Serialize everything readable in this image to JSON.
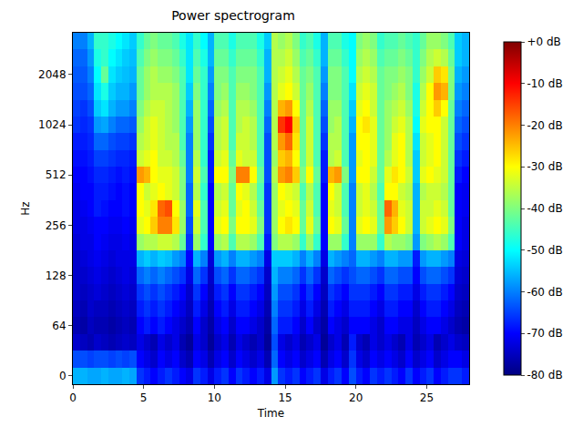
{
  "chart_data": {
    "type": "heatmap",
    "title": "Power spectrogram",
    "x_label": "Time",
    "y_label": "Hz",
    "color": "jet",
    "grid": false,
    "x": [
      0.25,
      0.75,
      1.25,
      1.75,
      2.25,
      2.75,
      3.25,
      3.75,
      4.25,
      4.75,
      5.25,
      5.75,
      6.25,
      6.75,
      7.25,
      7.75,
      8.25,
      8.75,
      9.25,
      9.75,
      10.25,
      10.75,
      11.25,
      11.75,
      12.25,
      12.75,
      13.25,
      13.75,
      14.25,
      14.75,
      15.25,
      15.75,
      16.25,
      16.75,
      17.25,
      17.75,
      18.25,
      18.75,
      19.25,
      19.75,
      20.25,
      20.75,
      21.25,
      21.75,
      22.25,
      22.75,
      23.25,
      23.75,
      24.25,
      24.75,
      25.25,
      25.75,
      26.25,
      26.75,
      27.25,
      27.75
    ],
    "xlim": [
      0,
      28
    ],
    "xticks": [
      0,
      5,
      10,
      15,
      20,
      25
    ],
    "y_categories": [
      0,
      null,
      null,
      64,
      null,
      null,
      128,
      null,
      null,
      256,
      null,
      null,
      512,
      null,
      null,
      1024,
      null,
      null,
      2048,
      null,
      null
    ],
    "cells": [
      [
        -56,
        -56,
        -57,
        -57,
        -56,
        -57,
        -57,
        -56,
        -57,
        -66,
        -68,
        -70,
        -68,
        -66,
        -68,
        -70,
        -72,
        -66,
        -68,
        -72,
        -68,
        -66,
        -70,
        -66,
        -68,
        -70,
        -68,
        -72,
        -58,
        -66,
        -68,
        -66,
        -70,
        -68,
        -66,
        -72,
        -68,
        -66,
        -70,
        -64,
        -68,
        -70,
        -66,
        -68,
        -66,
        -68,
        -70,
        -66,
        -70,
        -68,
        -66,
        -70,
        -68,
        -66,
        -66,
        -68
      ],
      [
        -64,
        -64,
        -65,
        -64,
        -64,
        -65,
        -64,
        -65,
        -64,
        -70,
        -72,
        -74,
        -70,
        -72,
        -70,
        -74,
        -76,
        -70,
        -72,
        -76,
        -72,
        -70,
        -74,
        -70,
        -72,
        -74,
        -72,
        -76,
        -62,
        -70,
        -72,
        -70,
        -74,
        -72,
        -70,
        -76,
        -72,
        -70,
        -74,
        -66,
        -72,
        -74,
        -70,
        -72,
        -70,
        -72,
        -74,
        -70,
        -74,
        -72,
        -70,
        -74,
        -72,
        -70,
        -70,
        -72
      ],
      [
        -74,
        -75,
        -76,
        -74,
        -75,
        -76,
        -75,
        -74,
        -75,
        -72,
        -74,
        -76,
        -72,
        -74,
        -72,
        -76,
        -78,
        -72,
        -74,
        -78,
        -74,
        -72,
        -76,
        -72,
        -74,
        -76,
        -74,
        -78,
        -64,
        -72,
        -74,
        -72,
        -76,
        -74,
        -72,
        -78,
        -74,
        -72,
        -76,
        -68,
        -74,
        -76,
        -72,
        -74,
        -72,
        -74,
        -76,
        -72,
        -76,
        -74,
        -72,
        -76,
        -74,
        -72,
        -74,
        -75
      ],
      [
        -76,
        -77,
        -75,
        -76,
        -76,
        -77,
        -76,
        -75,
        -76,
        -70,
        -68,
        -70,
        -68,
        -70,
        -72,
        -74,
        -76,
        -70,
        -74,
        -77,
        -72,
        -70,
        -74,
        -70,
        -70,
        -72,
        -74,
        -77,
        -62,
        -68,
        -68,
        -70,
        -74,
        -70,
        -74,
        -77,
        -70,
        -72,
        -74,
        -70,
        -70,
        -70,
        -72,
        -74,
        -70,
        -70,
        -72,
        -72,
        -75,
        -72,
        -70,
        -70,
        -72,
        -74,
        -76,
        -77
      ],
      [
        -75,
        -76,
        -74,
        -75,
        -75,
        -76,
        -75,
        -74,
        -75,
        -68,
        -66,
        -68,
        -66,
        -68,
        -70,
        -72,
        -75,
        -68,
        -72,
        -76,
        -70,
        -68,
        -72,
        -68,
        -68,
        -70,
        -72,
        -76,
        -60,
        -66,
        -66,
        -68,
        -72,
        -68,
        -72,
        -76,
        -68,
        -70,
        -72,
        -68,
        -68,
        -68,
        -70,
        -72,
        -68,
        -68,
        -70,
        -70,
        -74,
        -70,
        -68,
        -68,
        -70,
        -72,
        -75,
        -76
      ],
      [
        -74,
        -75,
        -74,
        -73,
        -74,
        -75,
        -74,
        -73,
        -74,
        -66,
        -64,
        -66,
        -64,
        -66,
        -68,
        -70,
        -74,
        -66,
        -70,
        -75,
        -68,
        -66,
        -70,
        -66,
        -66,
        -68,
        -70,
        -75,
        -58,
        -64,
        -64,
        -66,
        -70,
        -66,
        -70,
        -75,
        -66,
        -68,
        -70,
        -66,
        -66,
        -66,
        -68,
        -70,
        -66,
        -66,
        -68,
        -68,
        -72,
        -68,
        -66,
        -66,
        -68,
        -70,
        -74,
        -75
      ],
      [
        -74,
        -74,
        -73,
        -72,
        -73,
        -74,
        -73,
        -72,
        -73,
        -62,
        -60,
        -62,
        -60,
        -62,
        -64,
        -66,
        -72,
        -62,
        -66,
        -74,
        -64,
        -62,
        -66,
        -62,
        -62,
        -64,
        -66,
        -74,
        -56,
        -60,
        -60,
        -62,
        -66,
        -62,
        -66,
        -74,
        -62,
        -64,
        -66,
        -64,
        -62,
        -62,
        -64,
        -66,
        -62,
        -62,
        -64,
        -64,
        -70,
        -64,
        -62,
        -62,
        -64,
        -66,
        -73,
        -74
      ],
      [
        -74,
        -73,
        -72,
        -71,
        -72,
        -73,
        -72,
        -72,
        -72,
        -56,
        -54,
        -56,
        -54,
        -55,
        -58,
        -60,
        -70,
        -56,
        -60,
        -73,
        -58,
        -56,
        -60,
        -56,
        -56,
        -58,
        -60,
        -72,
        -54,
        -54,
        -54,
        -56,
        -60,
        -56,
        -60,
        -72,
        -56,
        -58,
        -60,
        -62,
        -56,
        -56,
        -58,
        -60,
        -56,
        -56,
        -58,
        -58,
        -68,
        -58,
        -56,
        -56,
        -58,
        -60,
        -72,
        -73
      ],
      [
        -73,
        -72,
        -72,
        -70,
        -71,
        -72,
        -72,
        -71,
        -72,
        -38,
        -36,
        -36,
        -34,
        -34,
        -36,
        -42,
        -66,
        -38,
        -46,
        -70,
        -38,
        -36,
        -44,
        -36,
        -36,
        -38,
        -44,
        -68,
        -40,
        -36,
        -36,
        -38,
        -46,
        -38,
        -46,
        -70,
        -38,
        -38,
        -46,
        -60,
        -38,
        -38,
        -38,
        -46,
        -36,
        -38,
        -38,
        -40,
        -58,
        -40,
        -38,
        -36,
        -38,
        -44,
        -70,
        -72
      ],
      [
        -72,
        -72,
        -71,
        -70,
        -70,
        -71,
        -71,
        -70,
        -71,
        -32,
        -30,
        -26,
        -20,
        -20,
        -28,
        -38,
        -64,
        -34,
        -44,
        -70,
        -32,
        -30,
        -40,
        -30,
        -30,
        -32,
        -40,
        -66,
        -38,
        -30,
        -28,
        -30,
        -42,
        -32,
        -42,
        -70,
        -30,
        -32,
        -42,
        -60,
        -32,
        -30,
        -32,
        -42,
        -22,
        -26,
        -30,
        -34,
        -56,
        -34,
        -32,
        -30,
        -32,
        -40,
        -70,
        -72
      ],
      [
        -72,
        -71,
        -70,
        -68,
        -69,
        -70,
        -70,
        -69,
        -70,
        -30,
        -32,
        -28,
        -18,
        -16,
        -30,
        -38,
        -62,
        -32,
        -44,
        -70,
        -34,
        -32,
        -42,
        -32,
        -30,
        -34,
        -42,
        -66,
        -38,
        -32,
        -30,
        -32,
        -42,
        -34,
        -44,
        -70,
        -32,
        -34,
        -44,
        -60,
        -34,
        -32,
        -34,
        -42,
        -18,
        -24,
        -32,
        -34,
        -56,
        -34,
        -34,
        -32,
        -34,
        -42,
        -70,
        -71
      ],
      [
        -71,
        -70,
        -70,
        -68,
        -68,
        -69,
        -70,
        -69,
        -70,
        -30,
        -34,
        -32,
        -30,
        -32,
        -34,
        -40,
        -62,
        -36,
        -46,
        -70,
        -36,
        -34,
        -42,
        -30,
        -32,
        -36,
        -44,
        -66,
        -38,
        -30,
        -32,
        -34,
        -44,
        -36,
        -44,
        -70,
        -30,
        -34,
        -44,
        -60,
        -34,
        -32,
        -36,
        -44,
        -30,
        -30,
        -34,
        -36,
        -56,
        -36,
        -34,
        -34,
        -36,
        -42,
        -70,
        -71
      ],
      [
        -70,
        -70,
        -69,
        -67,
        -67,
        -68,
        -69,
        -68,
        -69,
        -22,
        -24,
        -30,
        -32,
        -32,
        -34,
        -40,
        -60,
        -34,
        -44,
        -68,
        -30,
        -30,
        -40,
        -20,
        -20,
        -30,
        -42,
        -64,
        -36,
        -22,
        -20,
        -26,
        -40,
        -30,
        -42,
        -68,
        -24,
        -22,
        -40,
        -58,
        -30,
        -30,
        -34,
        -42,
        -32,
        -28,
        -30,
        -34,
        -54,
        -32,
        -30,
        -32,
        -34,
        -42,
        -68,
        -70
      ],
      [
        -69,
        -69,
        -68,
        -65,
        -65,
        -66,
        -67,
        -67,
        -68,
        -34,
        -32,
        -30,
        -34,
        -34,
        -36,
        -42,
        -60,
        -36,
        -46,
        -68,
        -34,
        -32,
        -42,
        -32,
        -34,
        -34,
        -44,
        -64,
        -38,
        -26,
        -24,
        -30,
        -42,
        -34,
        -44,
        -68,
        -36,
        -34,
        -44,
        -58,
        -32,
        -30,
        -32,
        -42,
        -36,
        -32,
        -30,
        -36,
        -54,
        -34,
        -32,
        -30,
        -34,
        -42,
        -66,
        -68
      ],
      [
        -68,
        -68,
        -67,
        -62,
        -62,
        -64,
        -65,
        -65,
        -66,
        -36,
        -34,
        -32,
        -34,
        -36,
        -36,
        -44,
        -60,
        -38,
        -46,
        -66,
        -36,
        -34,
        -44,
        -34,
        -34,
        -36,
        -44,
        -64,
        -36,
        -22,
        -18,
        -28,
        -42,
        -34,
        -44,
        -66,
        -36,
        -36,
        -44,
        -58,
        -30,
        -30,
        -32,
        -42,
        -38,
        -32,
        -30,
        -36,
        -52,
        -34,
        -32,
        -30,
        -34,
        -42,
        -64,
        -66
      ],
      [
        -66,
        -67,
        -66,
        -58,
        -57,
        -60,
        -62,
        -62,
        -63,
        -38,
        -34,
        -32,
        -34,
        -36,
        -38,
        -44,
        -58,
        -38,
        -46,
        -64,
        -36,
        -34,
        -44,
        -36,
        -34,
        -36,
        -44,
        -62,
        -36,
        -14,
        -10,
        -26,
        -42,
        -34,
        -44,
        -64,
        -38,
        -36,
        -44,
        -56,
        -30,
        -28,
        -32,
        -42,
        -38,
        -34,
        -32,
        -36,
        -50,
        -32,
        -30,
        -30,
        -34,
        -42,
        -62,
        -64
      ],
      [
        -65,
        -66,
        -64,
        -54,
        -52,
        -56,
        -58,
        -58,
        -60,
        -40,
        -36,
        -34,
        -34,
        -36,
        -38,
        -44,
        -56,
        -38,
        -46,
        -62,
        -38,
        -36,
        -44,
        -36,
        -36,
        -38,
        -44,
        -60,
        -36,
        -24,
        -22,
        -30,
        -42,
        -36,
        -44,
        -62,
        -38,
        -38,
        -44,
        -54,
        -32,
        -30,
        -34,
        -42,
        -38,
        -36,
        -34,
        -38,
        -48,
        -34,
        -30,
        -26,
        -30,
        -42,
        -60,
        -62
      ],
      [
        -64,
        -64,
        -62,
        -52,
        -48,
        -54,
        -56,
        -56,
        -58,
        -42,
        -38,
        -36,
        -36,
        -36,
        -38,
        -44,
        -54,
        -40,
        -46,
        -60,
        -40,
        -38,
        -44,
        -38,
        -38,
        -40,
        -44,
        -58,
        -36,
        -32,
        -30,
        -34,
        -42,
        -38,
        -44,
        -60,
        -40,
        -40,
        -44,
        -52,
        -34,
        -32,
        -34,
        -42,
        -40,
        -38,
        -36,
        -40,
        -48,
        -36,
        -30,
        -22,
        -24,
        -40,
        -58,
        -60
      ],
      [
        -63,
        -63,
        -60,
        -50,
        -42,
        -52,
        -54,
        -55,
        -56,
        -42,
        -38,
        -36,
        -38,
        -38,
        -40,
        -44,
        -52,
        -42,
        -46,
        -58,
        -40,
        -40,
        -44,
        -40,
        -40,
        -40,
        -44,
        -56,
        -36,
        -34,
        -32,
        -36,
        -42,
        -40,
        -44,
        -58,
        -40,
        -40,
        -44,
        -50,
        -36,
        -34,
        -36,
        -42,
        -40,
        -40,
        -38,
        -40,
        -46,
        -38,
        -34,
        -26,
        -28,
        -40,
        -56,
        -58
      ],
      [
        -62,
        -62,
        -58,
        -48,
        -46,
        -50,
        -52,
        -54,
        -55,
        -44,
        -40,
        -38,
        -40,
        -40,
        -42,
        -46,
        -52,
        -44,
        -48,
        -56,
        -42,
        -42,
        -46,
        -42,
        -42,
        -42,
        -46,
        -56,
        -36,
        -36,
        -34,
        -38,
        -44,
        -42,
        -46,
        -56,
        -42,
        -42,
        -46,
        -50,
        -38,
        -36,
        -38,
        -44,
        -42,
        -42,
        -40,
        -42,
        -46,
        -40,
        -36,
        -34,
        -36,
        -42,
        -54,
        -56
      ],
      [
        -60,
        -60,
        -56,
        -46,
        -46,
        -48,
        -50,
        -52,
        -54,
        -46,
        -42,
        -40,
        -42,
        -42,
        -44,
        -48,
        -52,
        -46,
        -50,
        -56,
        -44,
        -44,
        -48,
        -44,
        -44,
        -44,
        -48,
        -54,
        -36,
        -38,
        -36,
        -40,
        -46,
        -44,
        -48,
        -56,
        -44,
        -44,
        -48,
        -50,
        -40,
        -38,
        -40,
        -46,
        -44,
        -44,
        -42,
        -44,
        -46,
        -42,
        -38,
        -38,
        -40,
        -44,
        -54,
        -56
      ]
    ],
    "colorbar": {
      "range": [
        -80,
        0
      ],
      "ticks": [
        {
          "value": 0,
          "label": "+0 dB"
        },
        {
          "value": -10,
          "label": "-10 dB"
        },
        {
          "value": -20,
          "label": "-20 dB"
        },
        {
          "value": -30,
          "label": "-30 dB"
        },
        {
          "value": -40,
          "label": "-40 dB"
        },
        {
          "value": -50,
          "label": "-50 dB"
        },
        {
          "value": -60,
          "label": "-60 dB"
        },
        {
          "value": -70,
          "label": "-70 dB"
        },
        {
          "value": -80,
          "label": "-80 dB"
        }
      ]
    }
  }
}
